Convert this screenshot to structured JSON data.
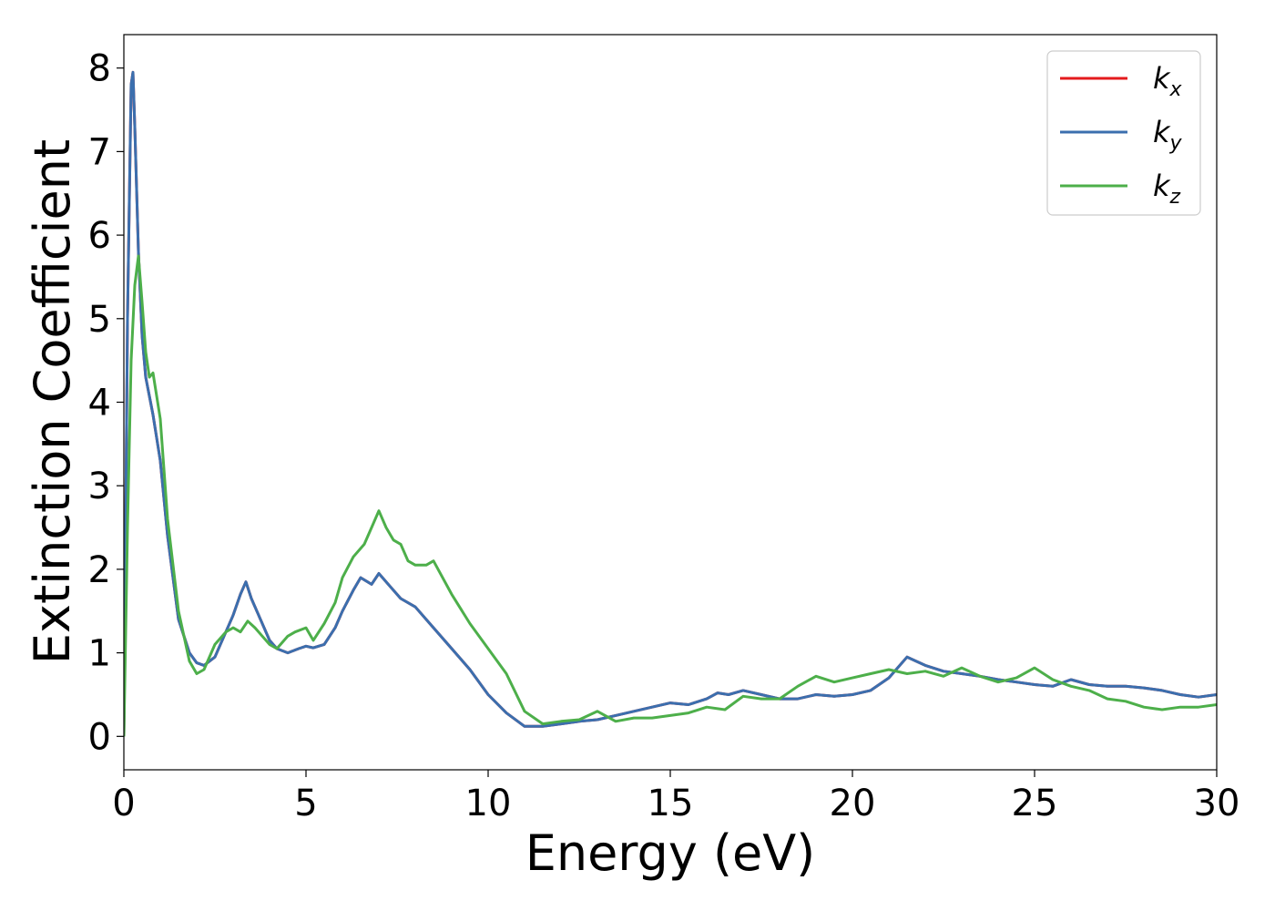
{
  "chart_data": {
    "type": "line",
    "xlabel": "Energy (eV)",
    "ylabel": "Extinction Coefficient",
    "xlim": [
      0,
      30
    ],
    "ylim": [
      -0.4,
      8.4
    ],
    "xticks": [
      0,
      5,
      10,
      15,
      20,
      25,
      30
    ],
    "yticks": [
      0,
      1,
      2,
      3,
      4,
      5,
      6,
      7,
      8
    ],
    "grid": false,
    "legend": "top-right",
    "series": [
      {
        "name": "k_x",
        "label_main": "k",
        "label_sub": "x",
        "color": "#e41a1c",
        "x": [
          0.0,
          0.1,
          0.2,
          0.25,
          0.3,
          0.4,
          0.5,
          0.6,
          0.8,
          1.0,
          1.2,
          1.5,
          1.8,
          2.0,
          2.2,
          2.5,
          2.8,
          3.0,
          3.2,
          3.35,
          3.5,
          3.7,
          4.0,
          4.2,
          4.5,
          4.8,
          5.0,
          5.2,
          5.5,
          5.8,
          6.0,
          6.3,
          6.5,
          6.8,
          7.0,
          7.3,
          7.6,
          8.0,
          8.5,
          9.0,
          9.5,
          10.0,
          10.5,
          11.0,
          11.5,
          12.0,
          12.5,
          13.0,
          13.5,
          14.0,
          14.5,
          15.0,
          15.5,
          16.0,
          16.3,
          16.6,
          17.0,
          17.5,
          18.0,
          18.5,
          19.0,
          19.5,
          20.0,
          20.5,
          21.0,
          21.5,
          22.0,
          22.5,
          23.0,
          23.5,
          24.0,
          24.5,
          25.0,
          25.5,
          26.0,
          26.5,
          27.0,
          27.5,
          28.0,
          28.5,
          29.0,
          29.5,
          30.0
        ],
        "y": [
          0.0,
          5.0,
          7.8,
          7.95,
          7.3,
          5.8,
          4.8,
          4.3,
          3.85,
          3.3,
          2.4,
          1.4,
          1.0,
          0.88,
          0.85,
          0.95,
          1.25,
          1.45,
          1.7,
          1.85,
          1.65,
          1.45,
          1.15,
          1.05,
          1.0,
          1.05,
          1.08,
          1.06,
          1.1,
          1.3,
          1.5,
          1.75,
          1.9,
          1.82,
          1.95,
          1.8,
          1.65,
          1.55,
          1.3,
          1.05,
          0.8,
          0.5,
          0.28,
          0.12,
          0.12,
          0.15,
          0.18,
          0.2,
          0.25,
          0.3,
          0.35,
          0.4,
          0.38,
          0.45,
          0.52,
          0.5,
          0.55,
          0.5,
          0.45,
          0.45,
          0.5,
          0.48,
          0.5,
          0.55,
          0.7,
          0.95,
          0.85,
          0.78,
          0.75,
          0.72,
          0.68,
          0.65,
          0.62,
          0.6,
          0.68,
          0.62,
          0.6,
          0.6,
          0.58,
          0.55,
          0.5,
          0.47,
          0.5
        ]
      },
      {
        "name": "k_y",
        "label_main": "k",
        "label_sub": "y",
        "color": "#3b6fae",
        "x": [
          0.0,
          0.1,
          0.2,
          0.25,
          0.3,
          0.4,
          0.5,
          0.6,
          0.8,
          1.0,
          1.2,
          1.5,
          1.8,
          2.0,
          2.2,
          2.5,
          2.8,
          3.0,
          3.2,
          3.35,
          3.5,
          3.7,
          4.0,
          4.2,
          4.5,
          4.8,
          5.0,
          5.2,
          5.5,
          5.8,
          6.0,
          6.3,
          6.5,
          6.8,
          7.0,
          7.3,
          7.6,
          8.0,
          8.5,
          9.0,
          9.5,
          10.0,
          10.5,
          11.0,
          11.5,
          12.0,
          12.5,
          13.0,
          13.5,
          14.0,
          14.5,
          15.0,
          15.5,
          16.0,
          16.3,
          16.6,
          17.0,
          17.5,
          18.0,
          18.5,
          19.0,
          19.5,
          20.0,
          20.5,
          21.0,
          21.5,
          22.0,
          22.5,
          23.0,
          23.5,
          24.0,
          24.5,
          25.0,
          25.5,
          26.0,
          26.5,
          27.0,
          27.5,
          28.0,
          28.5,
          29.0,
          29.5,
          30.0
        ],
        "y": [
          0.0,
          5.0,
          7.8,
          7.95,
          7.3,
          5.8,
          4.8,
          4.3,
          3.85,
          3.3,
          2.4,
          1.4,
          1.0,
          0.88,
          0.85,
          0.95,
          1.25,
          1.45,
          1.7,
          1.85,
          1.65,
          1.45,
          1.15,
          1.05,
          1.0,
          1.05,
          1.08,
          1.06,
          1.1,
          1.3,
          1.5,
          1.75,
          1.9,
          1.82,
          1.95,
          1.8,
          1.65,
          1.55,
          1.3,
          1.05,
          0.8,
          0.5,
          0.28,
          0.12,
          0.12,
          0.15,
          0.18,
          0.2,
          0.25,
          0.3,
          0.35,
          0.4,
          0.38,
          0.45,
          0.52,
          0.5,
          0.55,
          0.5,
          0.45,
          0.45,
          0.5,
          0.48,
          0.5,
          0.55,
          0.7,
          0.95,
          0.85,
          0.78,
          0.75,
          0.72,
          0.68,
          0.65,
          0.62,
          0.6,
          0.68,
          0.62,
          0.6,
          0.6,
          0.58,
          0.55,
          0.5,
          0.47,
          0.5
        ]
      },
      {
        "name": "k_z",
        "label_main": "k",
        "label_sub": "z",
        "color": "#4daf4a",
        "x": [
          0.0,
          0.1,
          0.2,
          0.3,
          0.4,
          0.5,
          0.6,
          0.7,
          0.8,
          1.0,
          1.2,
          1.5,
          1.8,
          2.0,
          2.2,
          2.5,
          2.8,
          3.0,
          3.2,
          3.4,
          3.6,
          3.8,
          4.0,
          4.2,
          4.5,
          4.7,
          5.0,
          5.2,
          5.5,
          5.8,
          6.0,
          6.3,
          6.6,
          6.8,
          7.0,
          7.2,
          7.4,
          7.6,
          7.8,
          8.0,
          8.3,
          8.5,
          9.0,
          9.5,
          10.0,
          10.5,
          11.0,
          11.5,
          12.0,
          12.5,
          13.0,
          13.5,
          14.0,
          14.5,
          15.0,
          15.5,
          16.0,
          16.5,
          17.0,
          17.5,
          18.0,
          18.5,
          19.0,
          19.5,
          20.0,
          20.5,
          21.0,
          21.5,
          22.0,
          22.5,
          23.0,
          23.5,
          24.0,
          24.5,
          25.0,
          25.5,
          26.0,
          26.5,
          27.0,
          27.5,
          28.0,
          28.5,
          29.0,
          29.5,
          30.0
        ],
        "y": [
          0.0,
          2.5,
          4.5,
          5.4,
          5.75,
          5.2,
          4.6,
          4.3,
          4.35,
          3.8,
          2.6,
          1.5,
          0.9,
          0.75,
          0.8,
          1.1,
          1.25,
          1.3,
          1.25,
          1.38,
          1.3,
          1.2,
          1.1,
          1.05,
          1.2,
          1.25,
          1.3,
          1.15,
          1.35,
          1.6,
          1.9,
          2.15,
          2.3,
          2.5,
          2.7,
          2.5,
          2.35,
          2.3,
          2.1,
          2.05,
          2.05,
          2.1,
          1.7,
          1.35,
          1.05,
          0.75,
          0.3,
          0.15,
          0.18,
          0.2,
          0.3,
          0.18,
          0.22,
          0.22,
          0.25,
          0.28,
          0.35,
          0.32,
          0.48,
          0.45,
          0.45,
          0.6,
          0.72,
          0.65,
          0.7,
          0.75,
          0.8,
          0.75,
          0.78,
          0.72,
          0.82,
          0.72,
          0.65,
          0.7,
          0.82,
          0.68,
          0.6,
          0.55,
          0.45,
          0.42,
          0.35,
          0.32,
          0.35,
          0.35,
          0.38
        ]
      }
    ]
  }
}
